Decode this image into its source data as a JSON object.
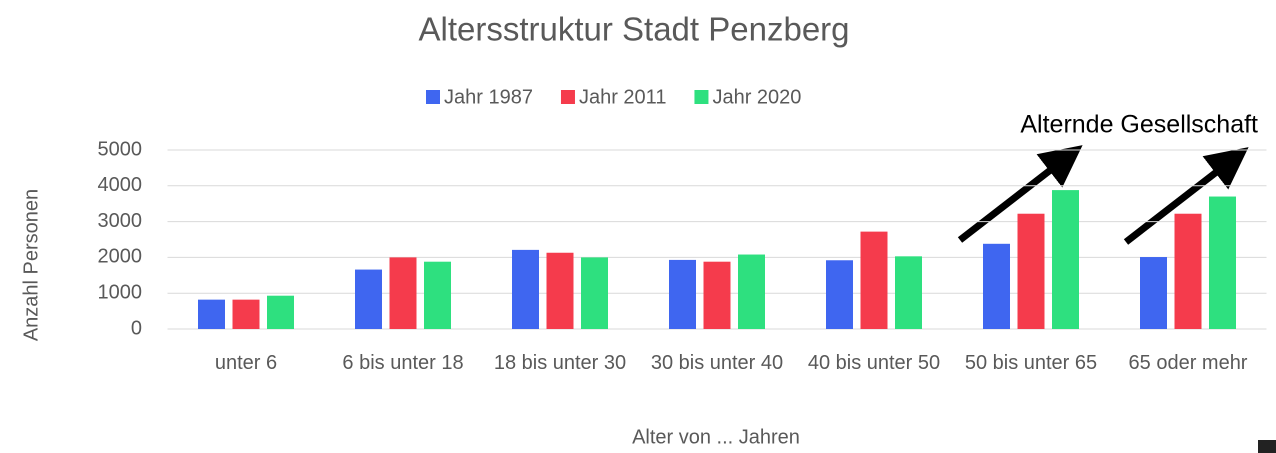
{
  "chart_data": {
    "type": "bar",
    "title": "Altersstruktur Stadt Penzberg",
    "xlabel": "Alter von ... Jahren",
    "ylabel": "Anzahl Personen",
    "annotation": "Alternde Gesellschaft",
    "categories": [
      "unter 6",
      "6 bis unter 18",
      "18 bis unter 30",
      "30 bis unter 40",
      "40 bis unter 50",
      "50 bis unter 65",
      "65 oder mehr"
    ],
    "series": [
      {
        "name": "Jahr 1987",
        "color": "#3f66f0",
        "values": [
          820,
          1660,
          2210,
          1930,
          1920,
          2380,
          2010
        ]
      },
      {
        "name": "Jahr 2011",
        "color": "#f53b4c",
        "values": [
          820,
          2000,
          2130,
          1880,
          2720,
          3220,
          3220
        ]
      },
      {
        "name": "Jahr 2020",
        "color": "#2ee07f",
        "values": [
          930,
          1880,
          2000,
          2080,
          2030,
          3880,
          3700
        ]
      }
    ],
    "ylim": [
      0,
      5000
    ],
    "yticks": [
      0,
      1000,
      2000,
      3000,
      4000,
      5000
    ],
    "grid": true,
    "legend": "top"
  }
}
